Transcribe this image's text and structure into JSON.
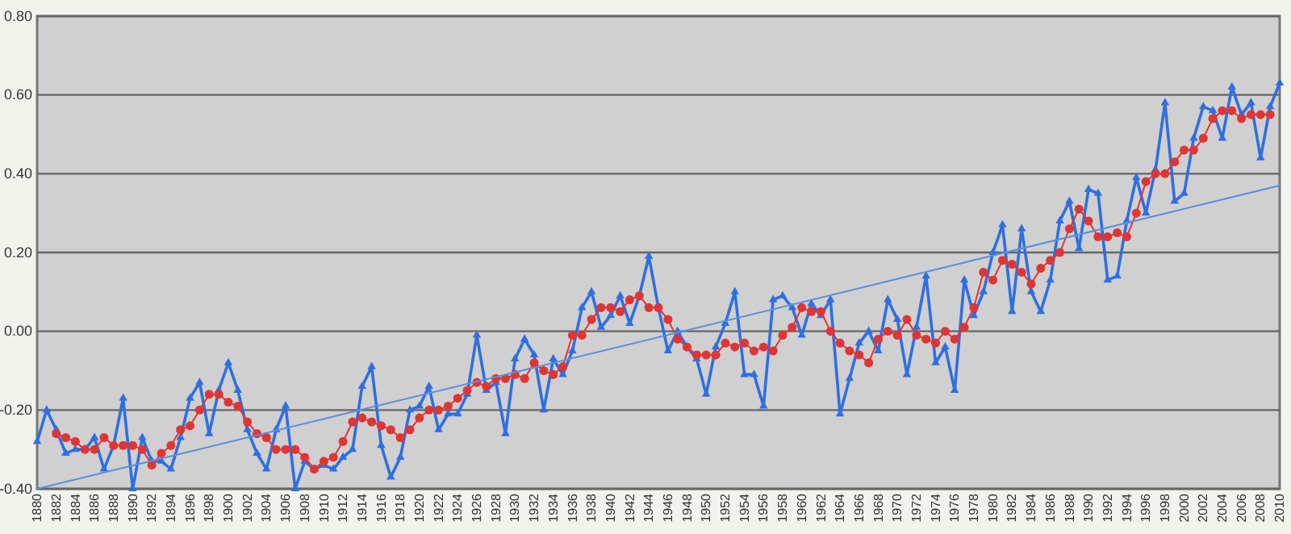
{
  "chart_data": {
    "type": "line",
    "x": [
      1880,
      1881,
      1882,
      1883,
      1884,
      1885,
      1886,
      1887,
      1888,
      1889,
      1890,
      1891,
      1892,
      1893,
      1894,
      1895,
      1896,
      1897,
      1898,
      1899,
      1900,
      1901,
      1902,
      1903,
      1904,
      1905,
      1906,
      1907,
      1908,
      1909,
      1910,
      1911,
      1912,
      1913,
      1914,
      1915,
      1916,
      1917,
      1918,
      1919,
      1920,
      1921,
      1922,
      1923,
      1924,
      1925,
      1926,
      1927,
      1928,
      1929,
      1930,
      1931,
      1932,
      1933,
      1934,
      1935,
      1936,
      1937,
      1938,
      1939,
      1940,
      1941,
      1942,
      1943,
      1944,
      1945,
      1946,
      1947,
      1948,
      1949,
      1950,
      1951,
      1952,
      1953,
      1954,
      1955,
      1956,
      1957,
      1958,
      1959,
      1960,
      1961,
      1962,
      1963,
      1964,
      1965,
      1966,
      1967,
      1968,
      1969,
      1970,
      1971,
      1972,
      1973,
      1974,
      1975,
      1976,
      1977,
      1978,
      1979,
      1980,
      1981,
      1982,
      1983,
      1984,
      1985,
      1986,
      1987,
      1988,
      1989,
      1990,
      1991,
      1992,
      1993,
      1994,
      1995,
      1996,
      1997,
      1998,
      1999,
      2000,
      2001,
      2002,
      2003,
      2004,
      2005,
      2006,
      2007,
      2008,
      2009,
      2010
    ],
    "series": [
      {
        "color": "#2f6fe0",
        "marker": "triangle",
        "values": [
          -0.28,
          -0.2,
          -0.25,
          -0.31,
          -0.3,
          -0.3,
          -0.27,
          -0.35,
          -0.29,
          -0.17,
          -0.4,
          -0.27,
          -0.33,
          -0.33,
          -0.35,
          -0.27,
          -0.17,
          -0.13,
          -0.26,
          -0.15,
          -0.08,
          -0.15,
          -0.25,
          -0.31,
          -0.35,
          -0.25,
          -0.19,
          -0.4,
          -0.33,
          -0.35,
          -0.34,
          -0.35,
          -0.32,
          -0.3,
          -0.14,
          -0.09,
          -0.29,
          -0.37,
          -0.32,
          -0.2,
          -0.19,
          -0.14,
          -0.25,
          -0.21,
          -0.21,
          -0.16,
          -0.01,
          -0.15,
          -0.13,
          -0.26,
          -0.07,
          -0.02,
          -0.06,
          -0.2,
          -0.07,
          -0.11,
          -0.05,
          0.06,
          0.1,
          0.01,
          0.04,
          0.09,
          0.02,
          0.09,
          0.19,
          0.06,
          -0.05,
          0.0,
          -0.04,
          -0.07,
          -0.16,
          -0.04,
          0.02,
          0.1,
          -0.11,
          -0.11,
          -0.19,
          0.08,
          0.09,
          0.06,
          -0.01,
          0.07,
          0.04,
          0.08,
          -0.21,
          -0.12,
          -0.03,
          0.0,
          -0.05,
          0.08,
          0.03,
          -0.11,
          0.01,
          0.14,
          -0.08,
          -0.04,
          -0.15,
          0.13,
          0.04,
          0.1,
          0.2,
          0.27,
          0.05,
          0.26,
          0.1,
          0.05,
          0.13,
          0.28,
          0.33,
          0.21,
          0.36,
          0.35,
          0.13,
          0.14,
          0.28,
          0.39,
          0.3,
          0.41,
          0.58,
          0.33,
          0.35,
          0.49,
          0.57,
          0.56,
          0.49,
          0.62,
          0.55,
          0.58,
          0.44,
          0.57,
          0.63
        ]
      },
      {
        "color": "#e03535",
        "marker": "circle",
        "values": [
          null,
          null,
          -0.26,
          -0.27,
          -0.28,
          -0.3,
          -0.3,
          -0.27,
          -0.29,
          -0.29,
          -0.29,
          -0.3,
          -0.34,
          -0.31,
          -0.29,
          -0.25,
          -0.24,
          -0.2,
          -0.16,
          -0.16,
          -0.18,
          -0.19,
          -0.23,
          -0.26,
          -0.27,
          -0.3,
          -0.3,
          -0.3,
          -0.32,
          -0.35,
          -0.33,
          -0.32,
          -0.28,
          -0.23,
          -0.22,
          -0.23,
          -0.24,
          -0.25,
          -0.27,
          -0.25,
          -0.22,
          -0.2,
          -0.2,
          -0.19,
          -0.17,
          -0.15,
          -0.13,
          -0.14,
          -0.12,
          -0.12,
          -0.11,
          -0.12,
          -0.08,
          -0.1,
          -0.11,
          -0.09,
          -0.01,
          -0.01,
          0.03,
          0.06,
          0.06,
          0.05,
          0.08,
          0.09,
          0.06,
          0.06,
          0.03,
          -0.02,
          -0.04,
          -0.06,
          -0.06,
          -0.06,
          -0.03,
          -0.04,
          -0.03,
          -0.05,
          -0.04,
          -0.05,
          -0.01,
          0.01,
          0.06,
          0.05,
          0.05,
          0.0,
          -0.03,
          -0.05,
          -0.06,
          -0.08,
          -0.02,
          0.0,
          -0.01,
          0.03,
          -0.01,
          -0.02,
          -0.03,
          0.0,
          -0.02,
          0.01,
          0.06,
          0.15,
          0.13,
          0.18,
          0.17,
          0.15,
          0.12,
          0.16,
          0.18,
          0.2,
          0.26,
          0.31,
          0.28,
          0.24,
          0.24,
          0.25,
          0.24,
          0.3,
          0.38,
          0.4,
          0.4,
          0.43,
          0.46,
          0.46,
          0.49,
          0.54,
          0.56,
          0.56,
          0.54,
          0.55,
          0.55,
          0.55,
          null
        ]
      },
      {
        "color": "#5b8fe0",
        "marker": "none",
        "x": [
          1880,
          2010
        ],
        "values": [
          -0.4,
          0.37
        ]
      }
    ],
    "xlim": [
      1880,
      2010
    ],
    "xticks": [
      1880,
      1882,
      1884,
      1886,
      1888,
      1890,
      1892,
      1894,
      1896,
      1898,
      1900,
      1902,
      1904,
      1906,
      1908,
      1910,
      1912,
      1914,
      1916,
      1918,
      1920,
      1922,
      1924,
      1926,
      1928,
      1930,
      1932,
      1934,
      1936,
      1938,
      1940,
      1942,
      1944,
      1946,
      1948,
      1950,
      1952,
      1954,
      1956,
      1958,
      1960,
      1962,
      1964,
      1966,
      1968,
      1970,
      1972,
      1974,
      1976,
      1978,
      1980,
      1982,
      1984,
      1986,
      1988,
      1990,
      1992,
      1994,
      1996,
      1998,
      2000,
      2002,
      2004,
      2006,
      2008,
      2010
    ],
    "ylim": [
      -0.4,
      0.8
    ],
    "yticks": [
      {
        "value": -0.4,
        "label": "-0.40"
      },
      {
        "value": -0.2,
        "label": "-0.20"
      },
      {
        "value": 0,
        "label": "0.00"
      },
      {
        "value": 0.2,
        "label": "0.20"
      },
      {
        "value": 0.4,
        "label": "0.40"
      },
      {
        "value": 0.6,
        "label": "0.60"
      },
      {
        "value": 0.8,
        "label": "0.80"
      }
    ],
    "grid": "y",
    "line_style": "solid"
  }
}
